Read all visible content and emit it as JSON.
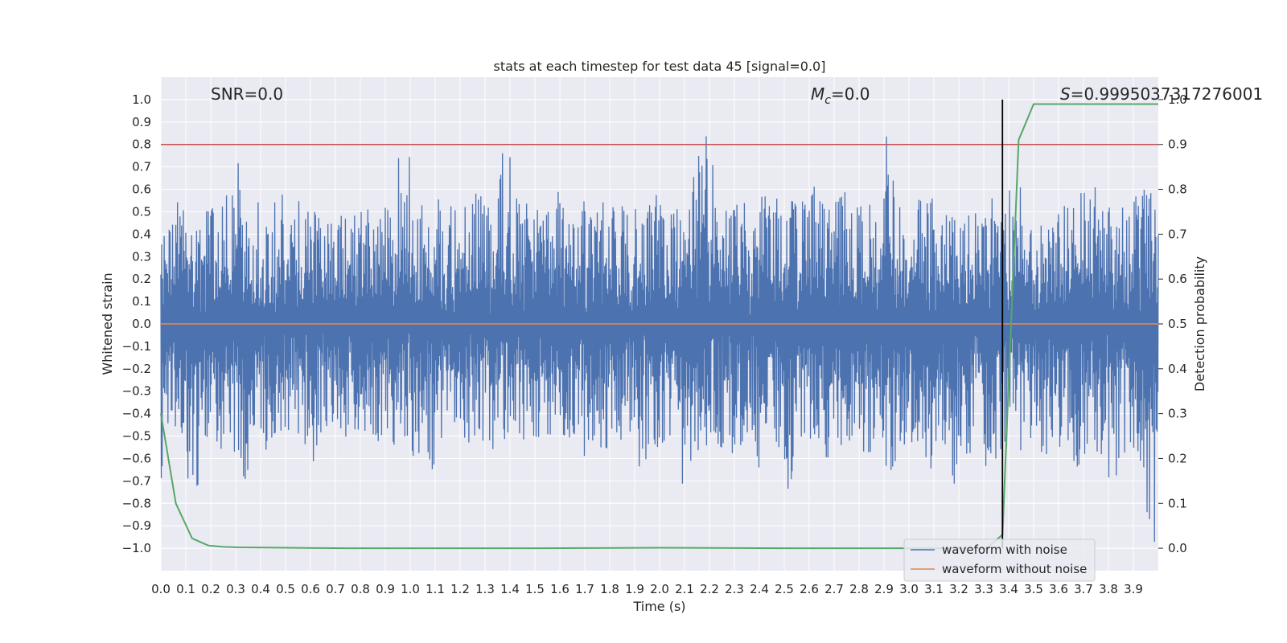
{
  "chart_data": {
    "type": "line",
    "title": "stats at each timestep for test data 45 [signal=0.0]",
    "xlabel": "Time (s)",
    "ylabel": "Whitened strain",
    "y2label": "Detection probability",
    "xlim": [
      0.0,
      4.0
    ],
    "ylim": [
      -1.1,
      1.1
    ],
    "y2lim": [
      -0.05,
      1.05
    ],
    "xticks": [
      0.0,
      0.1,
      0.2,
      0.3,
      0.4,
      0.5,
      0.6,
      0.7,
      0.8,
      0.9,
      1.0,
      1.1,
      1.2,
      1.3,
      1.4,
      1.5,
      1.6,
      1.7,
      1.8,
      1.9,
      2.0,
      2.1,
      2.2,
      2.3,
      2.4,
      2.5,
      2.6,
      2.7,
      2.8,
      2.9,
      3.0,
      3.1,
      3.2,
      3.3,
      3.4,
      3.5,
      3.6,
      3.7,
      3.8,
      3.9
    ],
    "yticks": [
      1.0,
      0.9,
      0.8,
      0.7,
      0.6,
      0.5,
      0.4,
      0.3,
      0.2,
      0.1,
      0.0,
      -0.1,
      -0.2,
      -0.3,
      -0.4,
      -0.5,
      -0.6,
      -0.7,
      -0.8,
      -0.9,
      -1.0
    ],
    "y2ticks": [
      1.0,
      0.9,
      0.8,
      0.7,
      0.6,
      0.5,
      0.4,
      0.3,
      0.2,
      0.1,
      0.0
    ],
    "grid": true,
    "legend_position": "lower-right",
    "annotations": {
      "snr": "SNR=0.0",
      "mc_symbol": "M",
      "mc_sub": "c",
      "mc_value": "=0.0",
      "s_symbol": "S",
      "s_value": "=0.9995037317276001"
    },
    "threshold": {
      "y2": 0.9,
      "color": "#c44e52"
    },
    "marker_line": {
      "x": 3.375,
      "y2_from": 0.0,
      "y2_to": 1.0,
      "color": "#000000"
    },
    "series": [
      {
        "name": "waveform with noise",
        "color": "#4c72b0",
        "axis": "left",
        "x": [
          0.0,
          0.05,
          0.1,
          0.15,
          0.2,
          0.25,
          0.3,
          0.35,
          0.4,
          0.45,
          0.5,
          0.55,
          0.6,
          0.65,
          0.7,
          0.75,
          0.8,
          0.85,
          0.9,
          0.95,
          1.0,
          1.05,
          1.1,
          1.15,
          1.2,
          1.25,
          1.3,
          1.35,
          1.4,
          1.45,
          1.5,
          1.55,
          1.6,
          1.65,
          1.7,
          1.75,
          1.8,
          1.85,
          1.9,
          1.95,
          2.0,
          2.05,
          2.1,
          2.15,
          2.2,
          2.25,
          2.3,
          2.35,
          2.4,
          2.45,
          2.5,
          2.55,
          2.6,
          2.65,
          2.7,
          2.75,
          2.8,
          2.85,
          2.9,
          2.95,
          3.0,
          3.05,
          3.1,
          3.15,
          3.2,
          3.25,
          3.3,
          3.35,
          3.4,
          3.45,
          3.5,
          3.55,
          3.6,
          3.65,
          3.7,
          3.75,
          3.8,
          3.85,
          3.9,
          3.95
        ],
        "y_max": [
          0.46,
          0.56,
          0.45,
          0.54,
          0.55,
          0.58,
          0.76,
          0.57,
          0.47,
          0.58,
          0.52,
          0.56,
          0.53,
          0.48,
          0.51,
          0.58,
          0.53,
          0.48,
          0.63,
          0.76,
          0.55,
          0.51,
          0.57,
          0.56,
          0.56,
          0.64,
          0.53,
          0.78,
          0.58,
          0.58,
          0.53,
          0.59,
          0.56,
          0.6,
          0.56,
          0.55,
          0.52,
          0.55,
          0.52,
          0.58,
          0.54,
          0.6,
          0.7,
          0.92,
          0.73,
          0.52,
          0.58,
          0.52,
          0.57,
          0.58,
          0.57,
          0.55,
          0.63,
          0.56,
          0.59,
          0.55,
          0.54,
          0.56,
          0.84,
          0.59,
          0.56,
          0.57,
          0.54,
          0.53,
          0.56,
          0.51,
          0.59,
          0.52,
          0.61,
          0.55,
          0.54,
          0.57,
          0.56,
          0.59,
          0.63,
          0.56,
          0.54,
          0.57,
          0.6,
          0.6
        ],
        "y_min": [
          -0.69,
          -0.51,
          -0.73,
          -0.52,
          -0.56,
          -0.63,
          -0.71,
          -0.51,
          -0.57,
          -0.54,
          -0.51,
          -0.58,
          -0.64,
          -0.53,
          -0.56,
          -0.48,
          -0.53,
          -0.55,
          -0.58,
          -0.53,
          -0.71,
          -0.65,
          -0.55,
          -0.5,
          -0.56,
          -0.57,
          -0.56,
          -0.53,
          -0.54,
          -0.52,
          -0.56,
          -0.54,
          -0.55,
          -0.67,
          -0.52,
          -0.57,
          -0.53,
          -0.56,
          -0.65,
          -0.55,
          -0.54,
          -0.79,
          -0.62,
          -0.61,
          -0.58,
          -0.58,
          -0.55,
          -0.65,
          -0.57,
          -0.56,
          -0.78,
          -0.57,
          -0.53,
          -0.61,
          -0.58,
          -0.55,
          -0.58,
          -0.57,
          -0.67,
          -0.56,
          -0.58,
          -0.67,
          -0.58,
          -0.74,
          -0.58,
          -0.55,
          -0.73,
          -0.57,
          -0.58,
          -0.55,
          -0.58,
          -0.63,
          -0.57,
          -0.67,
          -0.59,
          -0.61,
          -0.71,
          -0.61,
          -0.64,
          -0.99
        ]
      },
      {
        "name": "waveform without noise",
        "color": "#dd8452",
        "axis": "left",
        "x": [
          0.0,
          4.0
        ],
        "y": [
          0.0,
          0.0
        ]
      },
      {
        "name": "detection probability",
        "color": "#55a868",
        "axis": "right",
        "x": [
          0.0,
          0.06,
          0.125,
          0.19,
          0.25,
          0.31,
          0.5,
          0.75,
          1.0,
          1.5,
          2.0,
          2.5,
          3.0,
          3.25,
          3.31,
          3.375,
          3.44,
          3.5,
          3.56,
          4.0
        ],
        "y": [
          0.3,
          0.1,
          0.022,
          0.006,
          0.003,
          0.002,
          0.001,
          0.0,
          0.0,
          0.0,
          0.001,
          0.0,
          0.0,
          0.0,
          0.0,
          0.03,
          0.91,
          0.99,
          0.99,
          0.99
        ]
      }
    ]
  },
  "colors": {
    "plot_bg": "#eaeaf2",
    "grid": "#ffffff",
    "text": "#262626"
  }
}
